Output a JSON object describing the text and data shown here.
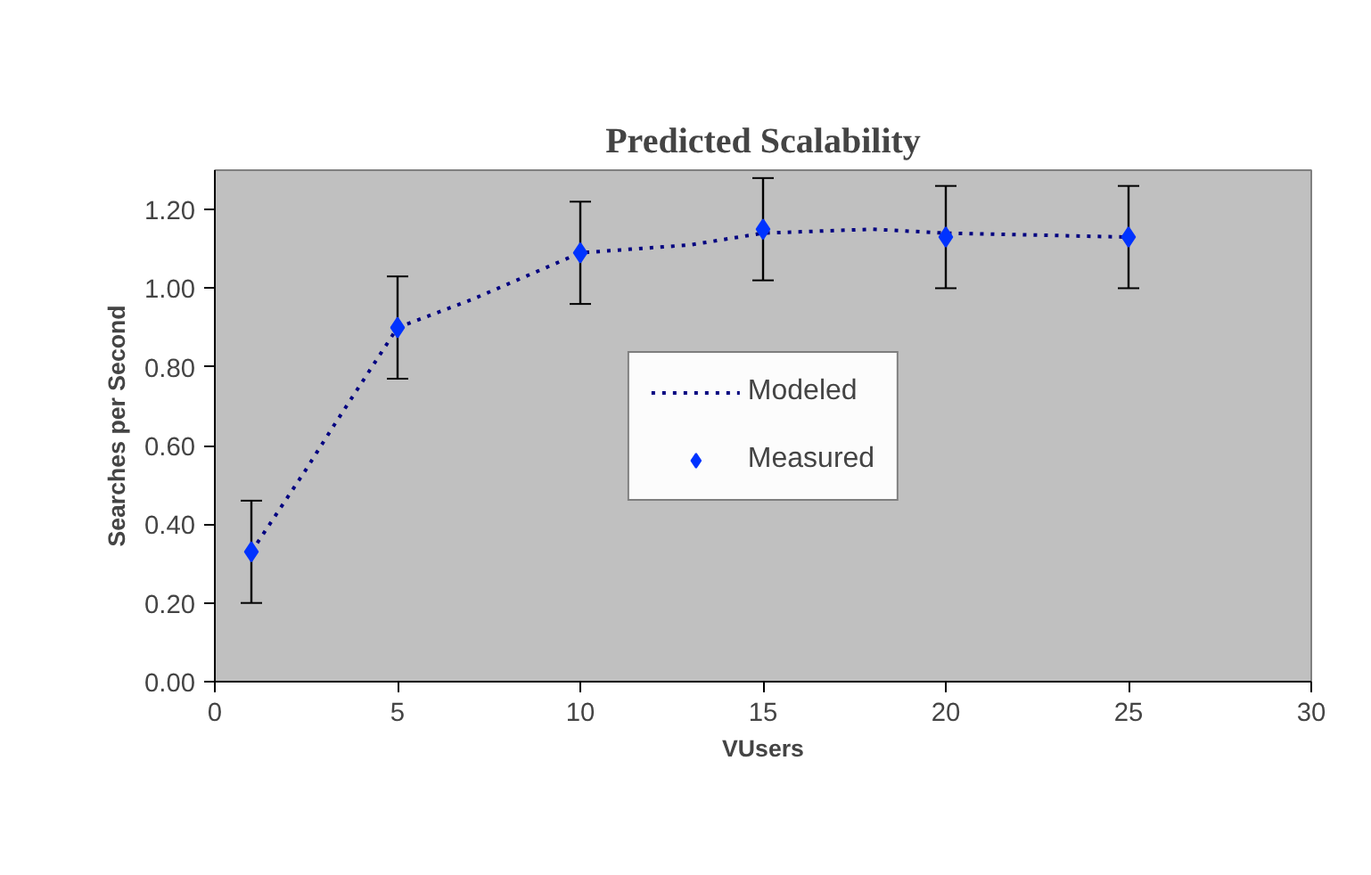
{
  "chart_data": {
    "type": "line",
    "title": "Predicted Scalability",
    "xlabel": "VUsers",
    "ylabel": "Searches per Second",
    "xlim": [
      0,
      30
    ],
    "xticks": [
      0,
      5,
      10,
      15,
      20,
      25,
      30
    ],
    "ylim": [
      0,
      1.3
    ],
    "yticks": [
      {
        "value": 0,
        "label": "0.00"
      },
      {
        "value": 0.2,
        "label": "0.20"
      },
      {
        "value": 0.4,
        "label": "0.40"
      },
      {
        "value": 0.6,
        "label": "0.60"
      },
      {
        "value": 0.8,
        "label": "0.80"
      },
      {
        "value": 1.0,
        "label": "1.00"
      },
      {
        "value": 1.2,
        "label": "1.20"
      }
    ],
    "grid": false,
    "legend": "center",
    "series": [
      {
        "name": "Modeled",
        "type": "line",
        "line_style": "dotted",
        "marker": "none",
        "color": "#000080",
        "x": [
          1,
          2.5,
          3.25,
          5,
          7,
          10,
          13,
          15,
          18,
          20,
          25
        ],
        "values": [
          0.33,
          0.54,
          0.65,
          0.9,
          0.97,
          1.09,
          1.11,
          1.14,
          1.15,
          1.14,
          1.13
        ]
      },
      {
        "name": "Measured",
        "type": "scatter",
        "marker": "diamond",
        "color": "#0033ff",
        "x": [
          1,
          5,
          10,
          15,
          20,
          25
        ],
        "values": [
          0.33,
          0.9,
          1.09,
          1.15,
          1.13,
          1.13
        ],
        "errors": [
          0.13,
          0.13,
          0.13,
          0.13,
          0.13,
          0.13
        ]
      }
    ]
  }
}
